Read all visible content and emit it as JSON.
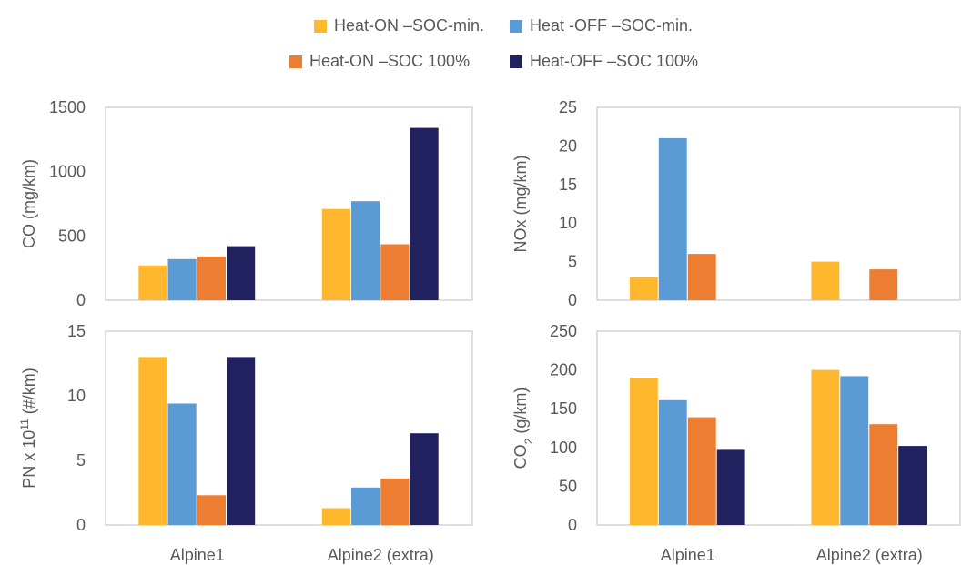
{
  "chart_data": {
    "type": "bar",
    "categories": [
      "Alpine1",
      "Alpine2 (extra)"
    ],
    "legend": {
      "placement": "top-center",
      "entries": [
        {
          "name": "Heat-ON –SOC-min.",
          "color": "#FFB82E"
        },
        {
          "name": "Heat -OFF –SOC-min.",
          "color": "#5B9BD5"
        },
        {
          "name": "Heat-ON –SOC 100%",
          "color": "#ED7D31"
        },
        {
          "name": "Heat-OFF –SOC 100%",
          "color": "#222160"
        }
      ]
    },
    "grid": false,
    "panels": [
      {
        "ylabel": "CO (mg/km)",
        "ylim": [
          0,
          1500
        ],
        "yticks": [
          0,
          500,
          1000,
          1500
        ],
        "show_xlabels": false,
        "series": [
          {
            "name": "Heat-ON –SOC-min.",
            "values": [
              270,
              710
            ]
          },
          {
            "name": "Heat -OFF –SOC-min.",
            "values": [
              320,
              770
            ]
          },
          {
            "name": "Heat-ON –SOC 100%",
            "values": [
              340,
              435
            ]
          },
          {
            "name": "Heat-OFF –SOC 100%",
            "values": [
              420,
              1340
            ]
          }
        ]
      },
      {
        "ylabel": "NOx (mg/km)",
        "ylim": [
          0,
          25
        ],
        "yticks": [
          0,
          5,
          10,
          15,
          20,
          25
        ],
        "show_xlabels": false,
        "series": [
          {
            "name": "Heat-ON –SOC-min.",
            "values": [
              3,
              5
            ]
          },
          {
            "name": "Heat -OFF –SOC-min.",
            "values": [
              21,
              null
            ]
          },
          {
            "name": "Heat-ON –SOC 100%",
            "values": [
              6,
              4
            ]
          },
          {
            "name": "Heat-OFF –SOC 100%",
            "values": [
              null,
              null
            ]
          }
        ]
      },
      {
        "ylabel": "PN x 10",
        "ylabel_sup": "11",
        "ylabel_rest": " (#/km)",
        "ylim": [
          0,
          15
        ],
        "yticks": [
          0,
          5,
          10,
          15
        ],
        "show_xlabels": true,
        "series": [
          {
            "name": "Heat-ON –SOC-min.",
            "values": [
              13,
              1.3
            ]
          },
          {
            "name": "Heat -OFF –SOC-min.",
            "values": [
              9.4,
              2.9
            ]
          },
          {
            "name": "Heat-ON –SOC 100%",
            "values": [
              2.3,
              3.6
            ]
          },
          {
            "name": "Heat-OFF –SOC 100%",
            "values": [
              13,
              7.1
            ]
          }
        ]
      },
      {
        "ylabel": "CO",
        "ylabel_sub": "2",
        "ylabel_rest": " (g/km)",
        "ylim": [
          0,
          250
        ],
        "yticks": [
          0,
          50,
          100,
          150,
          200,
          250
        ],
        "show_xlabels": true,
        "series": [
          {
            "name": "Heat-ON –SOC-min.",
            "values": [
              190,
              200
            ]
          },
          {
            "name": "Heat -OFF –SOC-min.",
            "values": [
              161,
              192
            ]
          },
          {
            "name": "Heat-ON –SOC 100%",
            "values": [
              139,
              130
            ]
          },
          {
            "name": "Heat-OFF –SOC 100%",
            "values": [
              97,
              102
            ]
          }
        ]
      }
    ]
  }
}
